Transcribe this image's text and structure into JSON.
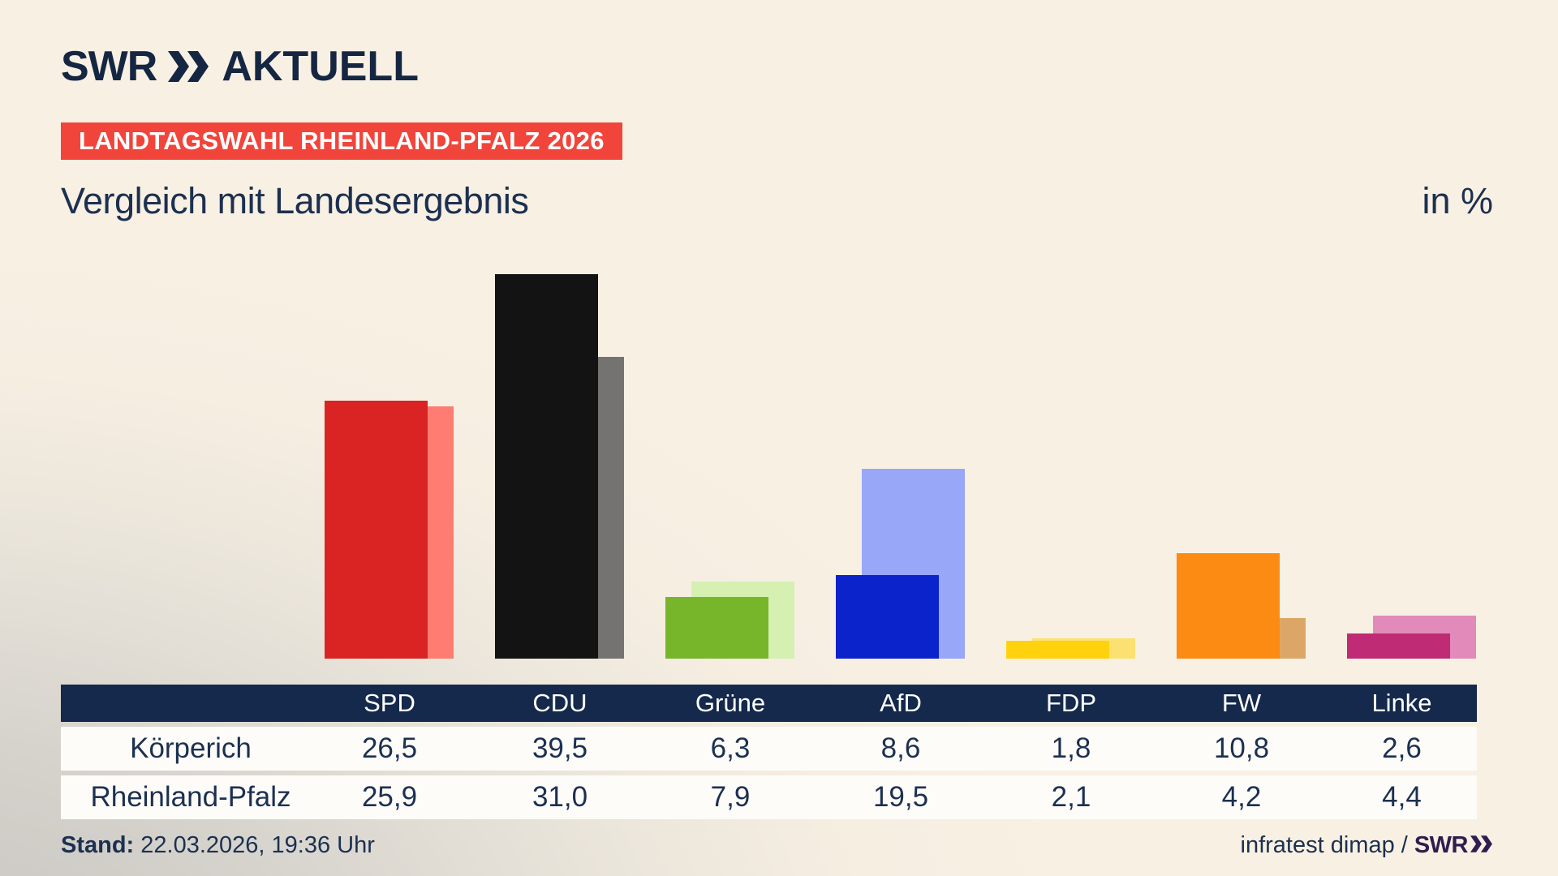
{
  "header": {
    "logo_swr": "SWR",
    "logo_aktuell": "AKTUELL",
    "banner": "LANDTAGSWAHL RHEINLAND-PFALZ 2026",
    "title": "Vergleich mit Landesergebnis",
    "unit_label": "in %"
  },
  "colors": {
    "navy": "#152642",
    "table_header_navy": "#14294b",
    "banner_red": "#f1453b",
    "text_navy": "#1c3050",
    "footer_brand_purple": "#2d1e4f",
    "background_cream": "#f8f0e3",
    "background_gray_corner": "#c6c4bf"
  },
  "chart_data": {
    "type": "bar",
    "title": "Vergleich mit Landesergebnis",
    "unit": "in %",
    "categories": [
      "SPD",
      "CDU",
      "Grüne",
      "AfD",
      "FDP",
      "FW",
      "Linke"
    ],
    "series": [
      {
        "name": "Körperich",
        "values": [
          26.5,
          39.5,
          6.3,
          8.6,
          1.8,
          10.8,
          2.6
        ],
        "colors": [
          "#da2423",
          "#131313",
          "#77b62a",
          "#0b23cb",
          "#ffd20d",
          "#fb8b12",
          "#bf2b74"
        ]
      },
      {
        "name": "Rheinland-Pfalz",
        "values": [
          25.9,
          31.0,
          7.9,
          19.5,
          2.1,
          4.2,
          4.4
        ],
        "colors": [
          "#fe7c71",
          "#757371",
          "#d5f0b0",
          "#98a7f8",
          "#fbe171",
          "#dca766",
          "#e28aba"
        ]
      }
    ],
    "ylim": [
      0,
      40
    ],
    "grid": false,
    "legend_position": "table-below",
    "value_format": "comma-decimal"
  },
  "table": {
    "columns": [
      "SPD",
      "CDU",
      "Grüne",
      "AfD",
      "FDP",
      "FW",
      "Linke"
    ],
    "rows": [
      {
        "label": "Körperich",
        "values": [
          "26,5",
          "39,5",
          "6,3",
          "8,6",
          "1,8",
          "10,8",
          "2,6"
        ]
      },
      {
        "label": "Rheinland-Pfalz",
        "values": [
          "25,9",
          "31,0",
          "7,9",
          "19,5",
          "2,1",
          "4,2",
          "4,4"
        ]
      }
    ]
  },
  "footer": {
    "stand_label": "Stand:",
    "stand_value": "22.03.2026, 19:36 Uhr",
    "source_text": "infratest dimap /",
    "source_brand": "SWR"
  }
}
